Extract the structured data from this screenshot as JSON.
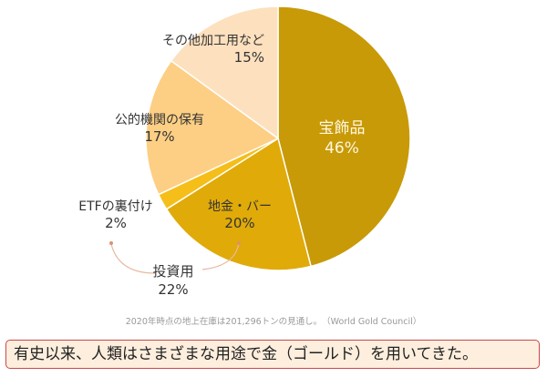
{
  "chart_data": {
    "type": "pie",
    "title": "",
    "slices": [
      {
        "label": "宝飾品",
        "value": 46,
        "color": "#c89a08"
      },
      {
        "label": "地金・バー",
        "value": 20,
        "color": "#e0aa08",
        "group": "投資用"
      },
      {
        "label": "ETFの裏付け",
        "value": 2,
        "color": "#f5be18",
        "group": "投資用"
      },
      {
        "label": "公的機関の保有",
        "value": 17,
        "color": "#fdcf84"
      },
      {
        "label": "その他加工用など",
        "value": 15,
        "color": "#fde0be"
      }
    ],
    "groups": [
      {
        "label": "投資用",
        "value": 22,
        "members": [
          "地金・バー",
          "ETFの裏付け"
        ]
      }
    ],
    "start_angle_deg": 0,
    "direction": "clockwise",
    "unit": "%"
  },
  "labels": {
    "jewelry": {
      "name": "宝飾品",
      "pct": "46%"
    },
    "bar": {
      "name": "地金・バー",
      "pct": "20%"
    },
    "etf": {
      "name": "ETFの裏付け",
      "pct": "2%"
    },
    "official": {
      "name": "公的機関の保有",
      "pct": "17%"
    },
    "other": {
      "name": "その他加工用など",
      "pct": "15%"
    },
    "investment": {
      "name": "投資用",
      "pct": "22%"
    }
  },
  "source_note": "2020年時点の地上在庫は201,296トンの見通し。　（World Gold Council）",
  "caption": "有史以来、人類はさまざまな用途で金（ゴールド）を用いてきた。"
}
